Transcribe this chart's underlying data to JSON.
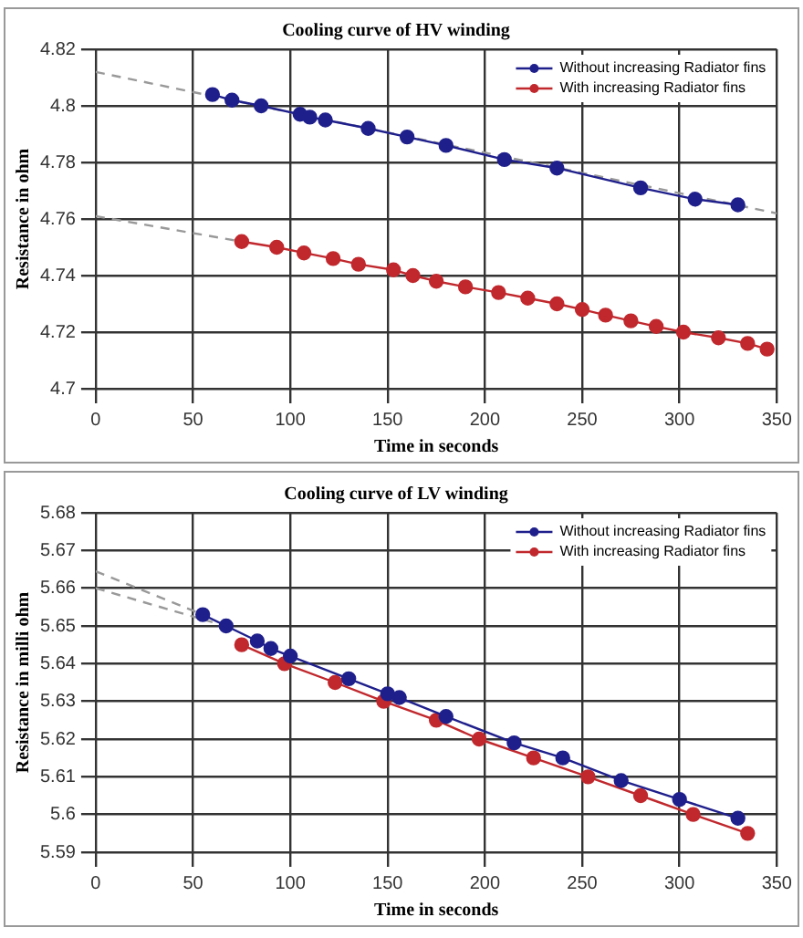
{
  "chart_data": [
    {
      "type": "line",
      "title": "Cooling curve of HV winding",
      "xlabel": "Time in seconds",
      "ylabel": "Resistance in ohm",
      "xlim": [
        0,
        350
      ],
      "xticks": [
        0,
        50,
        100,
        150,
        200,
        250,
        300,
        350
      ],
      "ylim": [
        4.7,
        4.82
      ],
      "yticks": [
        4.7,
        4.72,
        4.74,
        4.76,
        4.78,
        4.8,
        4.82
      ],
      "grid": true,
      "legend": "top right",
      "marker": "circle",
      "series": [
        {
          "name": "Without increasing Radiator fins",
          "color": "#1f1f8c",
          "x": [
            60,
            70,
            85,
            105,
            110,
            118,
            140,
            160,
            180,
            210,
            237,
            280,
            308,
            330
          ],
          "values": [
            4.804,
            4.802,
            4.8,
            4.797,
            4.796,
            4.795,
            4.792,
            4.789,
            4.786,
            4.781,
            4.778,
            4.771,
            4.767,
            4.765
          ]
        },
        {
          "name": "With increasing Radiator fins",
          "color": "#c0282d",
          "x": [
            75,
            93,
            107,
            122,
            135,
            153,
            163,
            175,
            190,
            207,
            222,
            237,
            250,
            262,
            275,
            288,
            302,
            320,
            335,
            345
          ],
          "values": [
            4.752,
            4.75,
            4.748,
            4.746,
            4.744,
            4.742,
            4.74,
            4.738,
            4.736,
            4.734,
            4.732,
            4.73,
            4.728,
            4.726,
            4.724,
            4.722,
            4.72,
            4.718,
            4.716,
            4.714
          ]
        },
        {
          "type": "line",
          "color": "#999999",
          "line_style": "dashed",
          "marker": "none",
          "x": [
            0,
            350
          ],
          "values": [
            4.812,
            4.762
          ]
        },
        {
          "type": "line",
          "color": "#999999",
          "line_style": "dashed",
          "marker": "none",
          "x": [
            0,
            75
          ],
          "values": [
            4.761,
            4.752
          ]
        }
      ]
    },
    {
      "type": "line",
      "title": "Cooling curve of LV winding",
      "xlabel": "Time in seconds",
      "ylabel": "Resistance in milli ohm",
      "xlim": [
        0,
        350
      ],
      "xticks": [
        0,
        50,
        100,
        150,
        200,
        250,
        300,
        350
      ],
      "ylim": [
        5.59,
        5.68
      ],
      "yticks": [
        5.59,
        5.6,
        5.61,
        5.62,
        5.63,
        5.64,
        5.65,
        5.66,
        5.67,
        5.68
      ],
      "grid": true,
      "legend": "top right",
      "marker": "circle",
      "series": [
        {
          "name": "Without increasing Radiator fins",
          "color": "#1f1f8c",
          "x": [
            55,
            67,
            83,
            90,
            100,
            130,
            150,
            156,
            180,
            215,
            240,
            270,
            300,
            330
          ],
          "values": [
            5.653,
            5.65,
            5.646,
            5.644,
            5.642,
            5.636,
            5.632,
            5.631,
            5.626,
            5.619,
            5.615,
            5.609,
            5.604,
            5.599
          ]
        },
        {
          "name": "With increasing Radiator fins",
          "color": "#c0282d",
          "x": [
            75,
            97,
            123,
            148,
            175,
            197,
            225,
            253,
            280,
            307,
            335
          ],
          "values": [
            5.645,
            5.64,
            5.635,
            5.63,
            5.625,
            5.62,
            5.615,
            5.61,
            5.605,
            5.6,
            5.595
          ]
        },
        {
          "type": "line",
          "color": "#999999",
          "line_style": "dashed",
          "marker": "none",
          "x": [
            0,
            55
          ],
          "values": [
            5.6645,
            5.653
          ]
        },
        {
          "type": "line",
          "color": "#999999",
          "line_style": "dashed",
          "marker": "none",
          "x": [
            0,
            60
          ],
          "values": [
            5.66,
            5.651
          ]
        }
      ]
    }
  ]
}
